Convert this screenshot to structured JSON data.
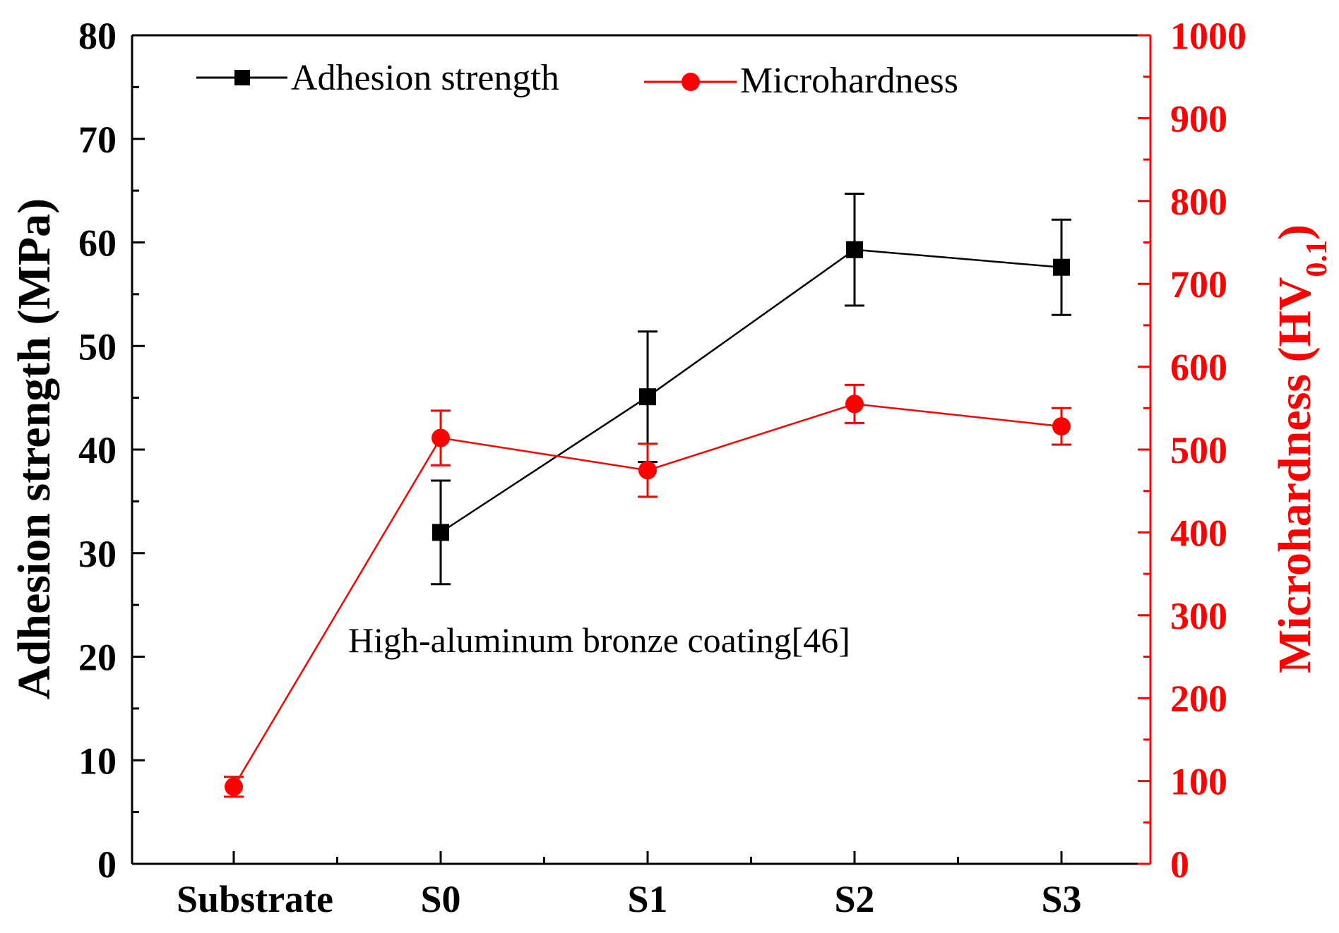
{
  "chart_data": {
    "type": "line",
    "categories": [
      "Substrate",
      "S0",
      "S1",
      "S2",
      "S3"
    ],
    "series": [
      {
        "name": "Adhesion strength",
        "axis": "left",
        "color": "#000000",
        "marker": "square",
        "values": [
          null,
          32.0,
          45.1,
          59.3,
          57.6
        ],
        "errors": [
          null,
          5.0,
          6.3,
          5.4,
          4.6
        ]
      },
      {
        "name": "Microhardness",
        "axis": "right",
        "color": "#ff0000",
        "marker": "circle",
        "values": [
          93,
          514,
          475,
          555,
          528
        ],
        "errors": [
          12,
          33,
          32,
          23,
          22
        ]
      }
    ],
    "left_axis": {
      "label": "Adhesion strength (MPa)",
      "ylim": [
        0,
        80
      ],
      "ticks": [
        "0",
        "10",
        "20",
        "30",
        "40",
        "50",
        "60",
        "70",
        "80"
      ],
      "color": "#000000"
    },
    "right_axis": {
      "label_main": "Microhardness (HV",
      "label_sub": "0.1",
      "label_close": ")",
      "ylim": [
        0,
        1000
      ],
      "ticks": [
        "0",
        "100",
        "200",
        "300",
        "400",
        "500",
        "600",
        "700",
        "800",
        "900",
        "1000"
      ],
      "color": "#ff0000"
    },
    "annotation": "High-aluminum bronze coating[46]",
    "legend_position": "top"
  }
}
